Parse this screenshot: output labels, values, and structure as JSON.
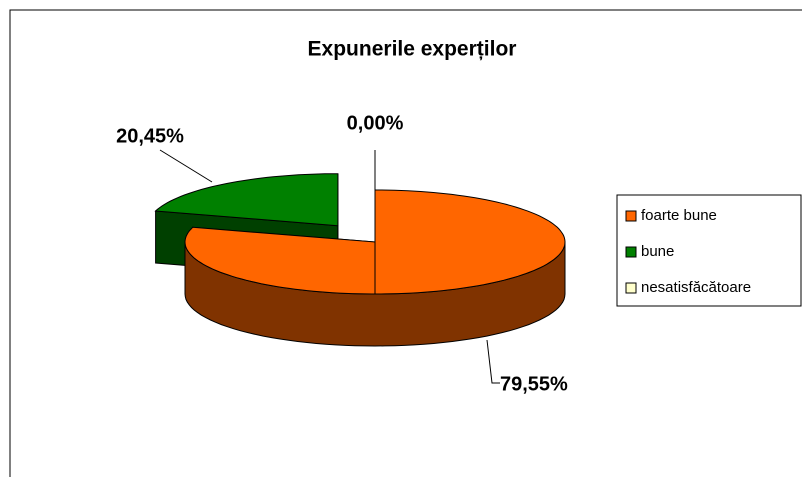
{
  "chart_data": {
    "type": "pie3d",
    "title": "Expunerile experților",
    "categories": [
      "foarte bune",
      "bune",
      "nesatisfăcătoare"
    ],
    "series": [
      {
        "name": "Expunerile experților",
        "values": [
          79.55,
          20.45,
          0.0
        ],
        "value_labels": [
          "79,55%",
          "20,45%",
          "0,00%"
        ],
        "colors": [
          "#ff6600",
          "#008000",
          "#ffffcc"
        ]
      }
    ],
    "legend": "right"
  }
}
